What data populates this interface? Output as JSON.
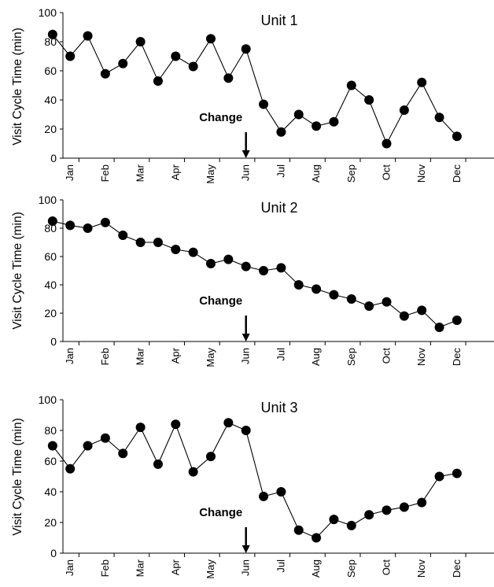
{
  "chart_data": [
    {
      "type": "line",
      "title": "Unit 1",
      "ylabel": "Visit Cycle Time (min)",
      "xlabel": "",
      "ylim": [
        0,
        100
      ],
      "yticks": [
        0,
        20,
        40,
        60,
        80,
        100
      ],
      "categories": [
        "Jan",
        "Feb",
        "Mar",
        "Apr",
        "May",
        "Jun",
        "Jul",
        "Aug",
        "Sep",
        "Oct",
        "Nov",
        "Dec"
      ],
      "annotation": {
        "text": "Change",
        "at_month": "Jun"
      },
      "x": [
        0.5,
        1,
        1.5,
        2,
        2.5,
        3,
        3.5,
        4,
        4.5,
        5,
        5.5,
        6,
        6.5,
        7,
        7.5,
        8,
        8.5,
        9,
        9.5,
        10,
        10.5,
        11,
        11.5,
        12
      ],
      "values": [
        85,
        70,
        84,
        58,
        65,
        80,
        53,
        70,
        63,
        82,
        55,
        75,
        37,
        18,
        30,
        22,
        25,
        50,
        40,
        10,
        33,
        52,
        28,
        15
      ],
      "grid": false,
      "legend": "none"
    },
    {
      "type": "line",
      "title": "Unit 2",
      "ylabel": "Visit Cycle Time (min)",
      "xlabel": "",
      "ylim": [
        0,
        100
      ],
      "yticks": [
        0,
        20,
        40,
        60,
        80,
        100
      ],
      "categories": [
        "Jan",
        "Feb",
        "Mar",
        "Apr",
        "May",
        "Jun",
        "Jul",
        "Aug",
        "Sep",
        "Oct",
        "Nov",
        "Dec"
      ],
      "annotation": {
        "text": "Change",
        "at_month": "Jun"
      },
      "x": [
        0.5,
        1,
        1.5,
        2,
        2.5,
        3,
        3.5,
        4,
        4.5,
        5,
        5.5,
        6,
        6.5,
        7,
        7.5,
        8,
        8.5,
        9,
        9.5,
        10,
        10.5,
        11,
        11.5,
        12
      ],
      "values": [
        85,
        82,
        80,
        84,
        75,
        70,
        70,
        65,
        63,
        55,
        58,
        53,
        50,
        52,
        40,
        37,
        33,
        30,
        25,
        28,
        18,
        22,
        10,
        15
      ],
      "grid": false,
      "legend": "none"
    },
    {
      "type": "line",
      "title": "Unit 3",
      "ylabel": "Visit Cycle Time (min)",
      "xlabel": "",
      "ylim": [
        0,
        100
      ],
      "yticks": [
        0,
        20,
        40,
        60,
        80,
        100
      ],
      "categories": [
        "Jan",
        "Feb",
        "Mar",
        "Apr",
        "May",
        "Jun",
        "Jul",
        "Aug",
        "Sep",
        "Oct",
        "Nov",
        "Dec"
      ],
      "annotation": {
        "text": "Change",
        "at_month": "Jun"
      },
      "x": [
        0.5,
        1,
        1.5,
        2,
        2.5,
        3,
        3.5,
        4,
        4.5,
        5,
        5.5,
        6,
        6.5,
        7,
        7.5,
        8,
        8.5,
        9,
        9.5,
        10,
        10.5,
        11,
        11.5,
        12
      ],
      "values": [
        70,
        55,
        70,
        75,
        65,
        82,
        58,
        84,
        53,
        63,
        85,
        80,
        37,
        40,
        15,
        10,
        22,
        18,
        25,
        28,
        30,
        33,
        50,
        52
      ],
      "grid": false,
      "legend": "none"
    }
  ]
}
